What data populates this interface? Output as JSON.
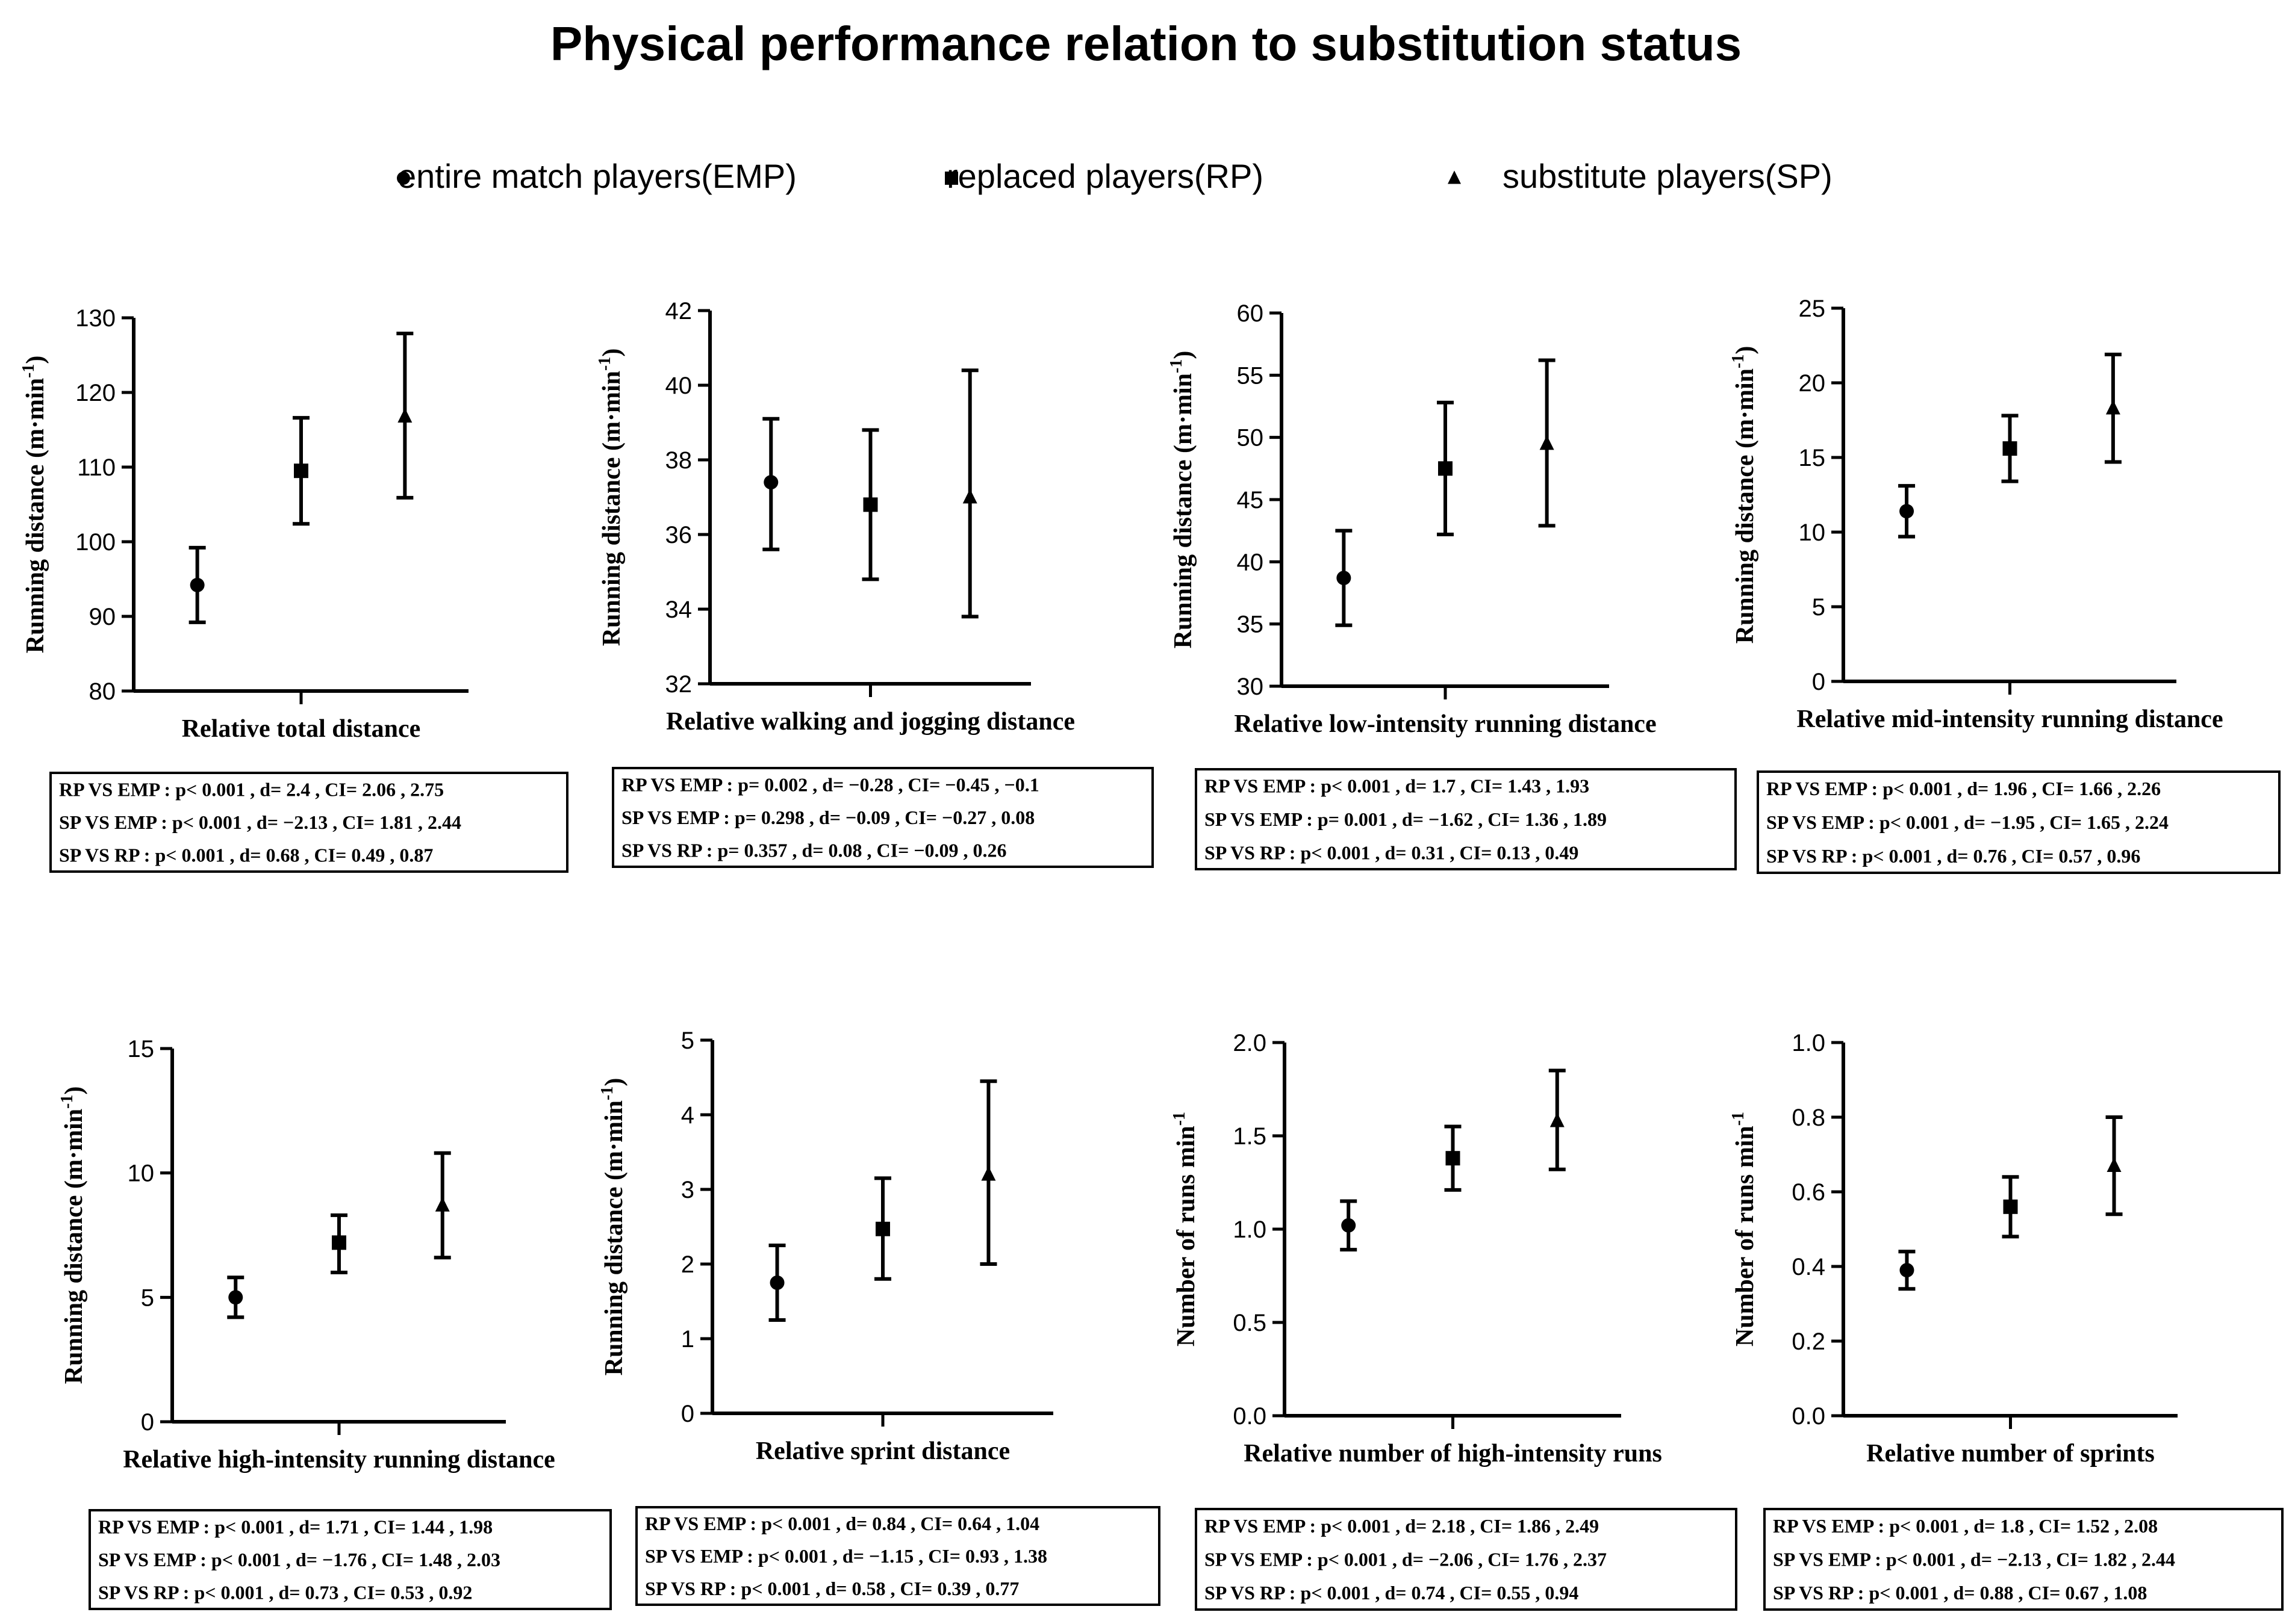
{
  "title": "Physical performance relation to substitution status",
  "legend": [
    {
      "symbol": "circle",
      "label": "entire match players(EMP)"
    },
    {
      "symbol": "square",
      "label": "replaced players(RP)"
    },
    {
      "symbol": "triangle",
      "label": "substitute players(SP)"
    }
  ],
  "colors": {
    "ink": "#000000",
    "background": "#ffffff"
  },
  "chart_data": [
    {
      "type": "scatter",
      "title": "",
      "xlabel": "Relative total distance",
      "ylabel": "Running distance (m·min",
      "ylabel_sup": "-1",
      "ylabel_close": ")",
      "ylim": [
        80,
        130
      ],
      "ticks": [
        80,
        90,
        100,
        110,
        120,
        130
      ],
      "tick_labels": [
        "80",
        "90",
        "100",
        "110",
        "120",
        "130"
      ],
      "series": [
        {
          "name": "entire match players(EMP)",
          "marker": "circle",
          "mean": 94.2,
          "low": 89.2,
          "high": 99.2
        },
        {
          "name": "replaced players(RP)",
          "marker": "square",
          "mean": 109.5,
          "low": 102.4,
          "high": 116.6
        },
        {
          "name": "substitute players(SP)",
          "marker": "triangle",
          "mean": 116.8,
          "low": 105.9,
          "high": 127.9
        }
      ],
      "stats": [
        "RP VS EMP : p< 0.001 ,  d= 2.4 ,  CI= 2.06 , 2.75",
        "SP VS EMP : p< 0.001 ,  d= −2.13 ,  CI= 1.81 ,  2.44",
        "SP VS RP : p< 0.001 ,  d= 0.68 ,  CI= 0.49 ,  0.87"
      ]
    },
    {
      "type": "scatter",
      "title": "",
      "xlabel": "Relative walking and jogging distance",
      "ylabel": "Running distance (m·min",
      "ylabel_sup": "-1",
      "ylabel_close": ")",
      "ylim": [
        32,
        42
      ],
      "ticks": [
        32,
        34,
        36,
        38,
        40,
        42
      ],
      "tick_labels": [
        "32",
        "34",
        "36",
        "38",
        "40",
        "42"
      ],
      "series": [
        {
          "name": "entire match players(EMP)",
          "marker": "circle",
          "mean": 37.4,
          "low": 35.6,
          "high": 39.1
        },
        {
          "name": "replaced players(RP)",
          "marker": "square",
          "mean": 36.8,
          "low": 34.8,
          "high": 38.8
        },
        {
          "name": "substitute players(SP)",
          "marker": "triangle",
          "mean": 37.0,
          "low": 33.8,
          "high": 40.4
        }
      ],
      "stats": [
        "RP VS EMP : p= 0.002 ,  d= −0.28 ,  CI= −0.45 , −0.1",
        "SP VS EMP : p= 0.298 ,  d= −0.09 ,  CI= −0.27 ,  0.08",
        "SP VS RP : p= 0.357 ,  d= 0.08 ,  CI=  −0.09 ,  0.26"
      ]
    },
    {
      "type": "scatter",
      "title": "",
      "xlabel": "Relative low-intensity running distance",
      "ylabel": "Running distance (m·min",
      "ylabel_sup": "-1",
      "ylabel_close": ")",
      "ylim": [
        30,
        60
      ],
      "ticks": [
        30,
        35,
        40,
        45,
        50,
        55,
        60
      ],
      "tick_labels": [
        "30",
        "35",
        "40",
        "45",
        "50",
        "55",
        "60"
      ],
      "series": [
        {
          "name": "entire match players(EMP)",
          "marker": "circle",
          "mean": 38.7,
          "low": 34.9,
          "high": 42.5
        },
        {
          "name": "replaced players(RP)",
          "marker": "square",
          "mean": 47.5,
          "low": 42.2,
          "high": 52.8
        },
        {
          "name": "substitute players(SP)",
          "marker": "triangle",
          "mean": 49.5,
          "low": 42.9,
          "high": 56.2
        }
      ],
      "stats": [
        "RP VS EMP : p< 0.001 ,  d= 1.7 ,  CI= 1.43 ,  1.93",
        "SP VS EMP : p= 0.001 ,  d= −1.62 ,  CI= 1.36 , 1.89",
        "SP VS RP : p< 0.001 ,  d= 0.31 ,  CI= 0.13 ,  0.49"
      ]
    },
    {
      "type": "scatter",
      "title": "",
      "xlabel": "Relative mid-intensity running distance",
      "ylabel": "Running distance (m·min",
      "ylabel_sup": "-1",
      "ylabel_close": ")",
      "ylim": [
        0,
        25
      ],
      "ticks": [
        0,
        5,
        10,
        15,
        20,
        25
      ],
      "tick_labels": [
        "0",
        "5",
        "10",
        "15",
        "20",
        "25"
      ],
      "series": [
        {
          "name": "entire match players(EMP)",
          "marker": "circle",
          "mean": 11.4,
          "low": 9.7,
          "high": 13.1
        },
        {
          "name": "replaced players(RP)",
          "marker": "square",
          "mean": 15.6,
          "low": 13.4,
          "high": 17.8
        },
        {
          "name": "substitute players(SP)",
          "marker": "triangle",
          "mean": 18.3,
          "low": 14.7,
          "high": 21.9
        }
      ],
      "stats": [
        "RP VS EMP : p< 0.001 ,  d= 1.96 ,  CI= 1.66 ,  2.26",
        "SP VS EMP : p< 0.001 ,  d= −1.95 ,  CI= 1.65 ,  2.24",
        "SP VS RP : p< 0.001 ,  d= 0.76 ,  CI= 0.57 ,  0.96"
      ]
    },
    {
      "type": "scatter",
      "title": "",
      "xlabel": "Relative high-intensity running distance",
      "ylabel": "Running distance (m·min",
      "ylabel_sup": "-1",
      "ylabel_close": ")",
      "ylim": [
        0,
        15
      ],
      "ticks": [
        0,
        5,
        10,
        15
      ],
      "tick_labels": [
        "0",
        "5",
        "10",
        "15"
      ],
      "series": [
        {
          "name": "entire match players(EMP)",
          "marker": "circle",
          "mean": 5.0,
          "low": 4.2,
          "high": 5.8
        },
        {
          "name": "replaced players(RP)",
          "marker": "square",
          "mean": 7.2,
          "low": 6.0,
          "high": 8.3
        },
        {
          "name": "substitute players(SP)",
          "marker": "triangle",
          "mean": 8.7,
          "low": 6.6,
          "high": 10.8
        }
      ],
      "stats": [
        "RP VS EMP : p< 0.001 ,  d= 1.71 ,  CI= 1.44 ,  1.98",
        "SP VS EMP : p< 0.001 ,  d= −1.76 ,  CI= 1.48 ,  2.03",
        "SP VS RP : p< 0.001 ,  d= 0.73 ,  CI= 0.53 ,  0.92"
      ]
    },
    {
      "type": "scatter",
      "title": "",
      "xlabel": "Relative sprint distance",
      "ylabel": "Running distance (m·min",
      "ylabel_sup": "-1",
      "ylabel_close": ")",
      "ylim": [
        0,
        5
      ],
      "ticks": [
        0,
        1,
        2,
        3,
        4,
        5
      ],
      "tick_labels": [
        "0",
        "1",
        "2",
        "3",
        "4",
        "5"
      ],
      "series": [
        {
          "name": "entire match players(EMP)",
          "marker": "circle",
          "mean": 1.75,
          "low": 1.25,
          "high": 2.25
        },
        {
          "name": "replaced players(RP)",
          "marker": "square",
          "mean": 2.47,
          "low": 1.8,
          "high": 3.15
        },
        {
          "name": "substitute players(SP)",
          "marker": "triangle",
          "mean": 3.2,
          "low": 2.0,
          "high": 4.45
        }
      ],
      "stats": [
        "RP VS EMP : p< 0.001 ,  d= 0.84 ,  CI= 0.64 , 1.04",
        "SP VS EMP : p< 0.001 ,  d= −1.15 ,  CI= 0.93 ,  1.38",
        "SP VS RP : p< 0.001 ,  d= 0.58 ,  CI=  0.39 ,  0.77"
      ]
    },
    {
      "type": "scatter",
      "title": "",
      "xlabel": "Relative number of high-intensity runs",
      "ylabel": "Number of runs min",
      "ylabel_sup": "-1",
      "ylabel_close": "",
      "ylim": [
        0,
        2
      ],
      "ticks": [
        0,
        0.5,
        1,
        1.5,
        2
      ],
      "tick_labels": [
        "0.0",
        "0.5",
        "1.0",
        "1.5",
        "2.0"
      ],
      "series": [
        {
          "name": "entire match players(EMP)",
          "marker": "circle",
          "mean": 1.02,
          "low": 0.89,
          "high": 1.15
        },
        {
          "name": "replaced players(RP)",
          "marker": "square",
          "mean": 1.38,
          "low": 1.21,
          "high": 1.55
        },
        {
          "name": "substitute players(SP)",
          "marker": "triangle",
          "mean": 1.58,
          "low": 1.32,
          "high": 1.85
        }
      ],
      "stats": [
        "RP VS EMP : p< 0.001 ,  d= 2.18 ,  CI= 1.86 , 2.49",
        "SP VS EMP : p< 0.001 ,  d= −2.06 ,  CI= 1.76 , 2.37",
        "SP VS RP : p< 0.001 ,  d= 0.74 ,  CI= 0.55 ,  0.94"
      ]
    },
    {
      "type": "scatter",
      "title": "",
      "xlabel": "Relative number of sprints",
      "ylabel": "Number of runs min",
      "ylabel_sup": "-1",
      "ylabel_close": "",
      "ylim": [
        0,
        1
      ],
      "ticks": [
        0,
        0.2,
        0.4,
        0.6,
        0.8,
        1.0
      ],
      "tick_labels": [
        "0.0",
        "0.2",
        "0.4",
        "0.6",
        "0.8",
        "1.0"
      ],
      "series": [
        {
          "name": "entire match players(EMP)",
          "marker": "circle",
          "mean": 0.39,
          "low": 0.34,
          "high": 0.44
        },
        {
          "name": "replaced players(RP)",
          "marker": "square",
          "mean": 0.56,
          "low": 0.48,
          "high": 0.64
        },
        {
          "name": "substitute players(SP)",
          "marker": "triangle",
          "mean": 0.67,
          "low": 0.54,
          "high": 0.8
        }
      ],
      "stats": [
        "RP VS EMP : p< 0.001 ,  d= 1.8 ,  CI= 1.52 ,  2.08",
        "SP VS EMP : p< 0.001 ,  d= −2.13 ,  CI= 1.82 ,  2.44",
        "SP VS RP : p< 0.001 ,  d= 0.88 ,  CI= 0.67 ,  1.08"
      ]
    }
  ]
}
